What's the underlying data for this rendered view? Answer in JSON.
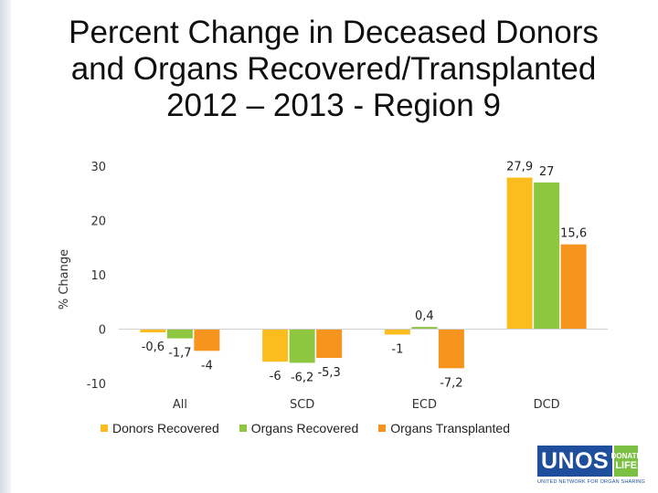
{
  "chart_data": {
    "type": "bar",
    "title_lines": [
      "Percent Change in Deceased Donors",
      "and Organs Recovered/Transplanted",
      "2012 – 2013 - Region 9"
    ],
    "ylabel": "% Change",
    "xlabel": "",
    "ylim": [
      -10,
      30
    ],
    "yticks": [
      30,
      20,
      10,
      0,
      -10
    ],
    "grid": false,
    "legend_position": "bottom",
    "categories": [
      "All",
      "SCD",
      "ECD",
      "DCD"
    ],
    "series": [
      {
        "name": "Donors Recovered",
        "color": "#fbbd1e",
        "values": [
          -0.6,
          -6,
          -1,
          27.9
        ],
        "labels": [
          "-0,6",
          "-6",
          "-1",
          "27,9"
        ]
      },
      {
        "name": "Organs Recovered",
        "color": "#8dc63f",
        "values": [
          -1.7,
          -6.2,
          0.4,
          27
        ],
        "labels": [
          "-1,7",
          "-6,2",
          "0,4",
          "27"
        ]
      },
      {
        "name": "Organs Transplanted",
        "color": "#f7941d",
        "values": [
          -4,
          -5.3,
          -7.2,
          15.6
        ],
        "labels": [
          "-4",
          "-5,3",
          "-7,2",
          "15,6"
        ]
      }
    ]
  },
  "logo": {
    "word": "UNOS",
    "badge_top": "DONATE",
    "badge_bottom": "LIFE",
    "tagline": "UNITED NETWORK FOR ORGAN SHARING"
  }
}
